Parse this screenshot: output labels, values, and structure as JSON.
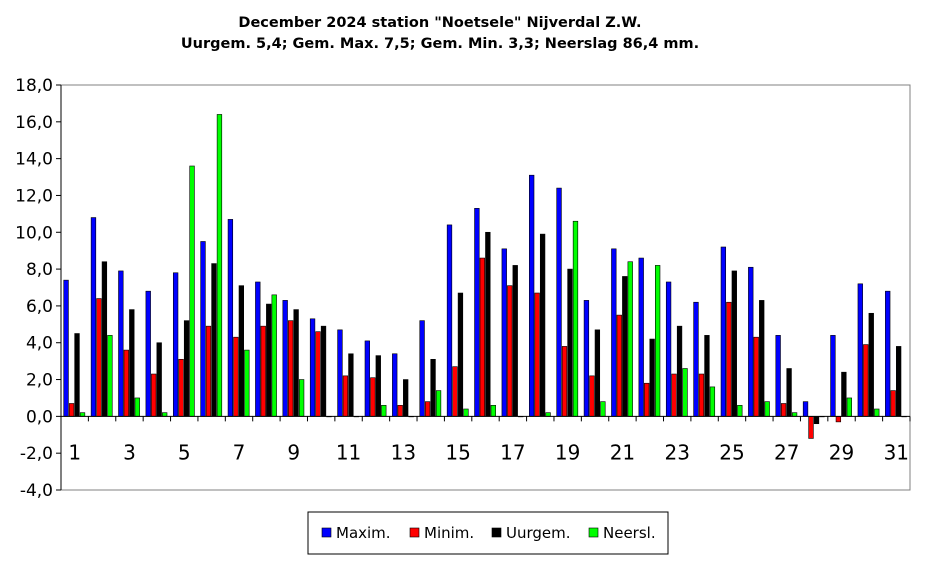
{
  "chart_data": {
    "type": "bar",
    "title": "December 2024 station \"Noetsele\" Nijverdal Z.W.",
    "subtitle": "Uurgem. 5,4; Gem. Max. 7,5; Gem. Min. 3,3;  Neerslag 86,4 mm.",
    "xlabel": "",
    "ylabel": "",
    "ylim": [
      -4,
      18
    ],
    "yticks": [
      "18,0",
      "16,0",
      "14,0",
      "12,0",
      "10,0",
      "8,0",
      "6,0",
      "4,0",
      "2,0",
      "0,0",
      "-2,0",
      "-4,0"
    ],
    "categories": [
      1,
      2,
      3,
      4,
      5,
      6,
      7,
      8,
      9,
      10,
      11,
      12,
      13,
      14,
      15,
      16,
      17,
      18,
      19,
      20,
      21,
      22,
      23,
      24,
      25,
      26,
      27,
      28,
      29,
      30,
      31
    ],
    "xtick_labels": [
      "1",
      "3",
      "5",
      "7",
      "9",
      "11",
      "13",
      "15",
      "17",
      "19",
      "21",
      "23",
      "25",
      "27",
      "29",
      "31"
    ],
    "grid": false,
    "legend_position": "bottom-center",
    "series": [
      {
        "name": "Maxim.",
        "color": "#0000ff",
        "values": [
          7.4,
          10.8,
          7.9,
          6.8,
          7.8,
          9.5,
          10.7,
          7.3,
          6.3,
          5.3,
          4.7,
          4.1,
          3.4,
          5.2,
          10.4,
          11.3,
          9.1,
          13.1,
          12.4,
          6.3,
          9.1,
          8.6,
          7.3,
          6.2,
          9.2,
          8.1,
          4.4,
          0.8,
          4.4,
          7.2,
          6.8
        ]
      },
      {
        "name": "Minim.",
        "color": "#ff0000",
        "values": [
          0.7,
          6.4,
          3.6,
          2.3,
          3.1,
          4.9,
          4.3,
          4.9,
          5.2,
          4.6,
          2.2,
          2.1,
          0.6,
          0.8,
          2.7,
          8.6,
          7.1,
          6.7,
          3.8,
          2.2,
          5.5,
          1.8,
          2.3,
          2.3,
          6.2,
          4.3,
          0.7,
          -1.2,
          -0.3,
          3.9,
          1.4
        ]
      },
      {
        "name": "Uurgem.",
        "color": "#000000",
        "values": [
          4.5,
          8.4,
          5.8,
          4.0,
          5.2,
          8.3,
          7.1,
          6.1,
          5.8,
          4.9,
          3.4,
          3.3,
          2.0,
          3.1,
          6.7,
          10.0,
          8.2,
          9.9,
          8.0,
          4.7,
          7.6,
          4.2,
          4.9,
          4.4,
          7.9,
          6.3,
          2.6,
          -0.4,
          2.4,
          5.6,
          3.8
        ]
      },
      {
        "name": "Neersl.",
        "color": "#00ff00",
        "values": [
          0.2,
          4.4,
          1.0,
          0.2,
          13.6,
          16.4,
          3.6,
          6.6,
          2.0,
          0.0,
          0.0,
          0.6,
          0.0,
          1.4,
          0.4,
          0.6,
          0.0,
          0.2,
          10.6,
          0.8,
          8.4,
          8.2,
          2.6,
          1.6,
          0.6,
          0.8,
          0.2,
          0.0,
          1.0,
          0.4,
          0.0
        ]
      }
    ]
  }
}
